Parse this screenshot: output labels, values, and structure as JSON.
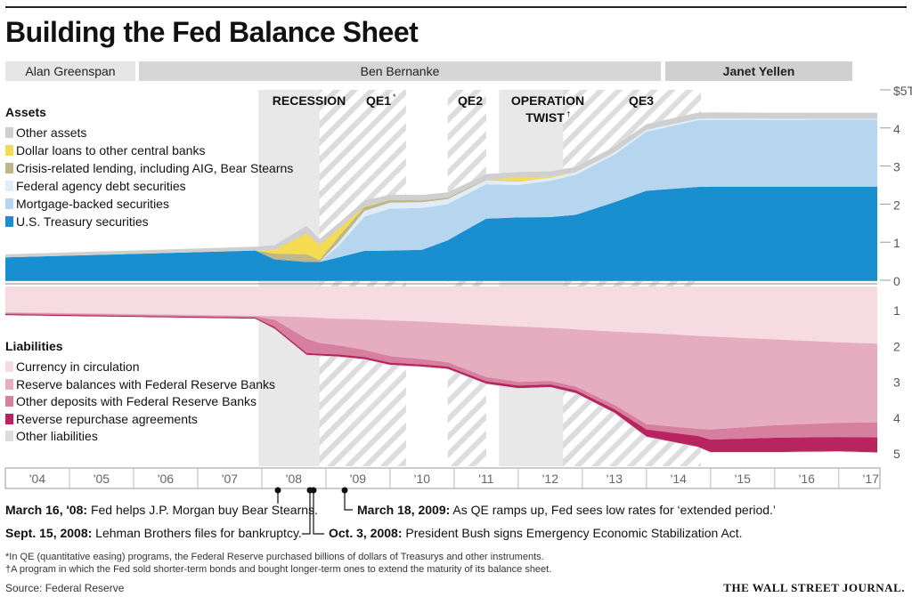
{
  "title": "Building the Fed Balance Sheet",
  "eras": [
    {
      "name": "Alan Greenspan"
    },
    {
      "name": "Ben Bernanke"
    },
    {
      "name": "Janet Yellen"
    }
  ],
  "periods": [
    {
      "label": "RECESSION"
    },
    {
      "label": "QE1",
      "mark": "*"
    },
    {
      "label": "QE2"
    },
    {
      "label": "OPERATION TWIST",
      "line1": "OPERATION",
      "line2": "TWIST",
      "mark": "†"
    },
    {
      "label": "QE3"
    }
  ],
  "chart_data": {
    "type": "area",
    "x_ticks": [
      "'04",
      "'05",
      "'06",
      "'07",
      "'08",
      "'09",
      "'10",
      "'11",
      "'12",
      "'13",
      "'14",
      "'15",
      "'16",
      "'17"
    ],
    "assets": {
      "label": "Assets",
      "y_ticks": [
        "$5T",
        "4",
        "3",
        "2",
        "1",
        "0"
      ],
      "ylim": [
        0,
        5
      ],
      "x": [
        2004,
        2007.9,
        2008.2,
        2008.7,
        2008.9,
        2009.2,
        2009.6,
        2010,
        2010.5,
        2010.9,
        2011.5,
        2012,
        2012.5,
        2012.9,
        2013.5,
        2014,
        2014.8,
        2015,
        2016,
        2017,
        2017.6
      ],
      "series": [
        {
          "name": "U.S. Treasury securities",
          "color": "#1a8fd0",
          "values": [
            0.6,
            0.78,
            0.55,
            0.48,
            0.48,
            0.6,
            0.77,
            0.78,
            0.8,
            1.05,
            1.62,
            1.65,
            1.66,
            1.72,
            2.05,
            2.35,
            2.45,
            2.46,
            2.46,
            2.46,
            2.46
          ]
        },
        {
          "name": "Mortgage-backed securities",
          "color": "#b6d5ef",
          "values": [
            0,
            0,
            0,
            0,
            0,
            0.3,
            0.9,
            1.1,
            1.1,
            0.95,
            0.9,
            0.85,
            0.95,
            1.05,
            1.25,
            1.55,
            1.75,
            1.75,
            1.75,
            1.76,
            1.76
          ]
        },
        {
          "name": "Federal agency debt securities",
          "color": "#e0ecf7",
          "values": [
            0,
            0,
            0,
            0,
            0,
            0.1,
            0.15,
            0.16,
            0.15,
            0.13,
            0.11,
            0.09,
            0.08,
            0.07,
            0.06,
            0.05,
            0.04,
            0.04,
            0.03,
            0.02,
            0.02
          ]
        },
        {
          "name": "Crisis-related lending, including AIG, Bear Stearns",
          "color": "#bfb68a",
          "values": [
            0,
            0,
            0.15,
            0.2,
            0.05,
            0.15,
            0.1,
            0.07,
            0.05,
            0.04,
            0.02,
            0.01,
            0,
            0,
            0,
            0,
            0,
            0,
            0,
            0,
            0
          ]
        },
        {
          "name": "Dollar loans to other central banks",
          "color": "#f4dc52",
          "values": [
            0,
            0,
            0.1,
            0.55,
            0.4,
            0.2,
            0.02,
            0,
            0,
            0,
            0,
            0.1,
            0.03,
            0,
            0,
            0,
            0,
            0,
            0,
            0,
            0
          ]
        },
        {
          "name": "Other assets",
          "color": "#cfcfcf",
          "values": [
            0.08,
            0.1,
            0.12,
            0.2,
            0.15,
            0.15,
            0.15,
            0.14,
            0.14,
            0.14,
            0.14,
            0.14,
            0.14,
            0.14,
            0.15,
            0.15,
            0.16,
            0.16,
            0.16,
            0.16,
            0.16
          ]
        }
      ]
    },
    "liabilities": {
      "label": "Liabilities",
      "y_ticks": [
        "1",
        "2",
        "3",
        "4",
        "5"
      ],
      "ylim": [
        0,
        5
      ],
      "x": [
        2004,
        2007.9,
        2008.2,
        2008.7,
        2008.9,
        2009.2,
        2009.6,
        2010,
        2010.5,
        2010.9,
        2011.5,
        2012,
        2012.5,
        2012.9,
        2013.5,
        2014,
        2014.8,
        2015,
        2016,
        2017,
        2017.6
      ],
      "series": [
        {
          "name": "Currency in circulation",
          "color": "#f6dbe3",
          "values": [
            0.72,
            0.82,
            0.83,
            0.86,
            0.88,
            0.9,
            0.92,
            0.95,
            0.98,
            1.02,
            1.08,
            1.12,
            1.16,
            1.2,
            1.26,
            1.3,
            1.38,
            1.4,
            1.48,
            1.56,
            1.6
          ]
        },
        {
          "name": "Reserve balances with Federal Reserve Banks",
          "color": "#e6acbf",
          "values": [
            0.02,
            0.02,
            0.1,
            0.6,
            0.7,
            0.75,
            0.85,
            1.0,
            1.05,
            1.1,
            1.45,
            1.55,
            1.48,
            1.6,
            2.05,
            2.55,
            2.6,
            2.6,
            2.4,
            2.25,
            2.2
          ]
        },
        {
          "name": "Other deposits with Federal Reserve Banks",
          "color": "#d67f9e",
          "values": [
            0.03,
            0.03,
            0.2,
            0.4,
            0.3,
            0.25,
            0.2,
            0.18,
            0.15,
            0.12,
            0.12,
            0.1,
            0.1,
            0.1,
            0.12,
            0.15,
            0.2,
            0.28,
            0.35,
            0.4,
            0.42
          ]
        },
        {
          "name": "Reverse repurchase agreements",
          "color": "#b7245f",
          "values": [
            0.03,
            0.03,
            0.05,
            0.05,
            0.05,
            0.06,
            0.06,
            0.06,
            0.06,
            0.06,
            0.07,
            0.07,
            0.07,
            0.08,
            0.1,
            0.2,
            0.3,
            0.35,
            0.4,
            0.4,
            0.42
          ]
        },
        {
          "name": "Other liabilities",
          "color": "#dcdcdc",
          "values": [
            0.01,
            0.01,
            0.02,
            0.02,
            0.02,
            0.02,
            0.02,
            0.02,
            0.02,
            0.02,
            0.02,
            0.02,
            0.02,
            0.02,
            0.02,
            0.02,
            0.02,
            0.02,
            0.02,
            0.02,
            0.02
          ]
        }
      ]
    },
    "shaded_periods": [
      {
        "label": "RECESSION",
        "start": 2007.95,
        "end": 2009.45,
        "style": "gray"
      },
      {
        "label": "QE1",
        "start": 2008.9,
        "end": 2010.25,
        "style": "hatch"
      },
      {
        "label": "QE2",
        "start": 2010.9,
        "end": 2011.5,
        "style": "hatch"
      },
      {
        "label": "OPERATION TWIST",
        "start": 2011.7,
        "end": 2012.95,
        "style": "gray"
      },
      {
        "label": "QE3",
        "start": 2012.7,
        "end": 2014.85,
        "style": "hatch"
      }
    ]
  },
  "events": [
    {
      "date": "March 16, '08:",
      "text": "Fed helps J.P. Morgan buy Bear Stearns."
    },
    {
      "date": "Sept. 15, 2008:",
      "text": "Lehman Brothers files for bankruptcy."
    },
    {
      "date": "March 18, 2009:",
      "text": "As QE ramps up, Fed sees low rates for ‘extended period.’"
    },
    {
      "date": "Oct. 3, 2008:",
      "text": "President Bush signs Emergency Economic Stabilization Act."
    }
  ],
  "footnotes": [
    "*In QE (quantitative easing) programs, the Federal Reserve purchased billions of dollars of Treasurys and other instruments.",
    "†A program in which the Fed sold shorter-term bonds and bought longer-term ones to extend the maturity of its balance sheet."
  ],
  "source": "Source: Federal Reserve",
  "brand": "THE WALL STREET JOURNAL."
}
